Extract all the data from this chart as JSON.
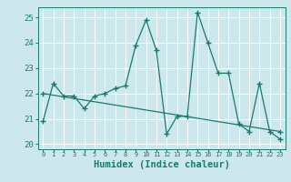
{
  "xlabel": "Humidex (Indice chaleur)",
  "bg_color": "#cce8ec",
  "line_color": "#1a7a6e",
  "grid_color": "#ffffff",
  "xlim": [
    -0.5,
    23.5
  ],
  "ylim": [
    19.8,
    25.4
  ],
  "xticks": [
    0,
    1,
    2,
    3,
    4,
    5,
    6,
    7,
    8,
    9,
    10,
    11,
    12,
    13,
    14,
    15,
    16,
    17,
    18,
    19,
    20,
    21,
    22,
    23
  ],
  "yticks": [
    20,
    21,
    22,
    23,
    24,
    25
  ],
  "series1_x": [
    0,
    1,
    2,
    3,
    4,
    5,
    6,
    7,
    8,
    9,
    10,
    11,
    12,
    13,
    14,
    15,
    16,
    17,
    18,
    19,
    20,
    21,
    22,
    23
  ],
  "series1_y": [
    20.9,
    22.4,
    21.9,
    21.9,
    21.4,
    21.9,
    22.0,
    22.2,
    22.3,
    23.9,
    24.9,
    23.7,
    20.4,
    21.1,
    21.1,
    25.2,
    24.0,
    22.8,
    22.8,
    20.8,
    20.5,
    22.4,
    20.5,
    20.2
  ],
  "series2_x": [
    0,
    23
  ],
  "series2_y": [
    22.0,
    20.5
  ],
  "tick_color": "#1a7a6e",
  "label_fontsize": 6.5,
  "xlabel_fontsize": 7.5,
  "xtick_fontsize": 5.0,
  "ytick_fontsize": 6.5
}
